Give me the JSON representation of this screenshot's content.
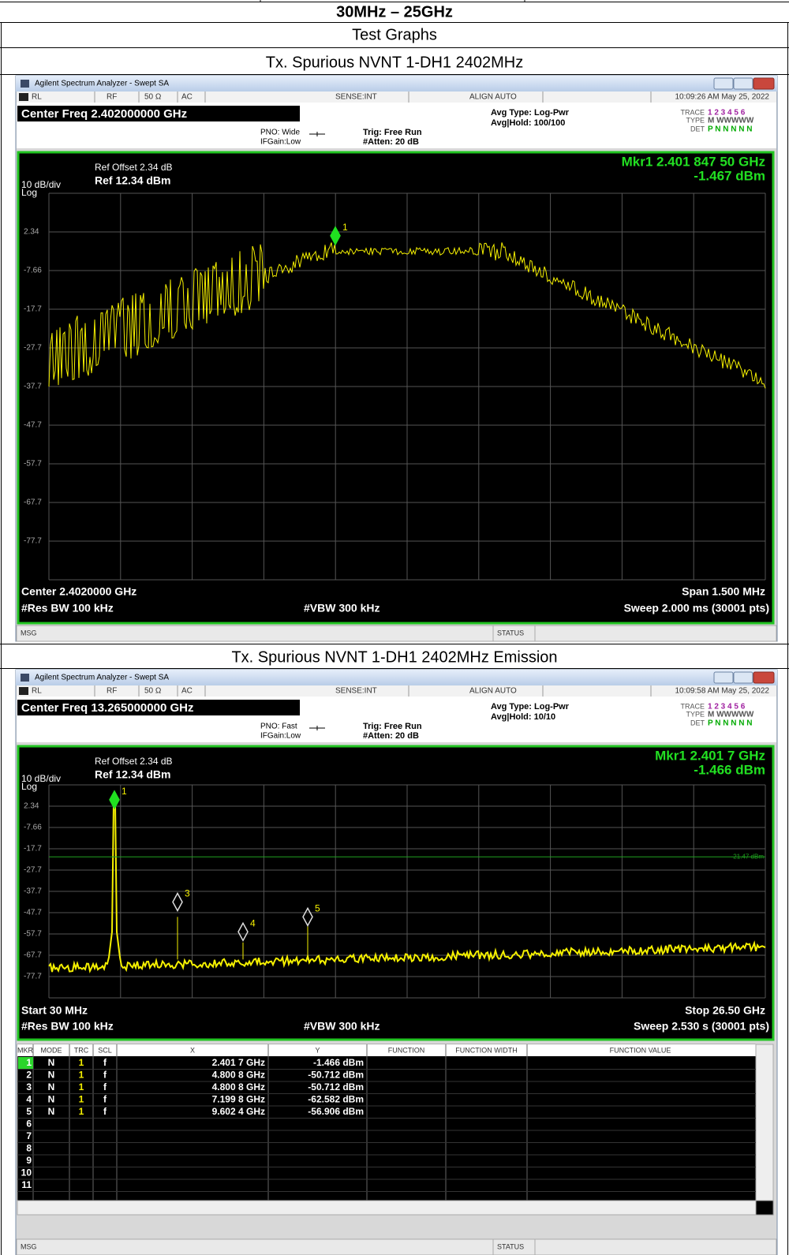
{
  "header": {
    "range": "30MHz – 25GHz",
    "section": "Test Graphs"
  },
  "graphs": [
    {
      "caption": "Tx. Spurious NVNT 1-DH1 2402MHz",
      "analyzer": {
        "window_title": "Agilent Spectrum Analyzer - Swept SA",
        "status": [
          "RL",
          "RF",
          "50 Ω",
          "AC",
          "SENSE:INT",
          "ALIGN AUTO",
          "10:09:26 AM May 25, 2022"
        ],
        "center_freq": "Center Freq 2.402000000 GHz",
        "settings": [
          "PNO: Wide",
          "IFGain:Low",
          "Trig: Free Run",
          "#Atten: 20 dB",
          "Avg Type: Log-Pwr",
          "Avg|Hold: 100/100"
        ],
        "trace_info": {
          "trace_label": "TRACE",
          "trace": "1 2 3 4 5 6",
          "type_label": "TYPE",
          "type": "M WWWWW",
          "det_label": "DET",
          "det": "P N N N N N"
        },
        "ref_offset": "Ref Offset 2.34 dB",
        "scale": "10 dB/div",
        "ref_level": "Ref 12.34 dBm",
        "scale_type": "Log",
        "marker_readout": [
          "Mkr1 2.401 847 50 GHz",
          "-1.467 dBm"
        ],
        "y_labels": [
          "2.34",
          "-7.66",
          "-17.7",
          "-27.7",
          "-37.7",
          "-47.7",
          "-57.7",
          "-67.7",
          "-77.7"
        ],
        "footer": [
          "Center 2.4020000 GHz",
          "Span 1.500 MHz",
          "#Res BW 100 kHz",
          "#VBW 300 kHz",
          "Sweep  2.000 ms (30001 pts)"
        ],
        "markers": [
          "1"
        ],
        "msg": "MSG",
        "status_bar": "STATUS"
      }
    },
    {
      "caption": "Tx. Spurious NVNT 1-DH1 2402MHz Emission",
      "analyzer": {
        "window_title": "Agilent Spectrum Analyzer - Swept SA",
        "status": [
          "RL",
          "RF",
          "50 Ω",
          "AC",
          "SENSE:INT",
          "ALIGN AUTO",
          "10:09:58 AM May 25, 2022"
        ],
        "center_freq": "Center Freq 13.265000000 GHz",
        "settings": [
          "PNO: Fast",
          "IFGain:Low",
          "Trig: Free Run",
          "#Atten: 20 dB",
          "Avg Type: Log-Pwr",
          "Avg|Hold: 10/10"
        ],
        "trace_info": {
          "trace_label": "TRACE",
          "trace": "1 2 3 4 5 6",
          "type_label": "TYPE",
          "type": "M WWWWW",
          "det_label": "DET",
          "det": "P N N N N N"
        },
        "ref_offset": "Ref Offset 2.34 dB",
        "scale": "10 dB/div",
        "ref_level": "Ref 12.34 dBm",
        "scale_type": "Log",
        "marker_readout": [
          "Mkr1 2.401 7 GHz",
          "-1.466 dBm"
        ],
        "y_labels": [
          "2.34",
          "-7.66",
          "-17.7",
          "-27.7",
          "-37.7",
          "-47.7",
          "-57.7",
          "-67.7",
          "-77.7"
        ],
        "limit_label": "-21.47 dBm",
        "footer": [
          "Start 30 MHz",
          "Stop 26.50 GHz",
          "#Res BW 100 kHz",
          "#VBW 300 kHz",
          "Sweep  2.530 s (30001 pts)"
        ],
        "markers": [
          "1",
          "3",
          "4",
          "5"
        ],
        "table": {
          "headers": [
            "MKR",
            "MODE",
            "TRC",
            "SCL",
            "X",
            "Y",
            "FUNCTION",
            "FUNCTION WIDTH",
            "FUNCTION VALUE"
          ],
          "rows": [
            [
              "1",
              "N",
              "1",
              "f",
              "2.401 7 GHz",
              "-1.466 dBm"
            ],
            [
              "2",
              "N",
              "1",
              "f",
              "4.800 8 GHz",
              "-50.712 dBm"
            ],
            [
              "3",
              "N",
              "1",
              "f",
              "4.800 8 GHz",
              "-50.712 dBm"
            ],
            [
              "4",
              "N",
              "1",
              "f",
              "7.199 8 GHz",
              "-62.582 dBm"
            ],
            [
              "5",
              "N",
              "1",
              "f",
              "9.602 4 GHz",
              "-56.906 dBm"
            ],
            [
              "6"
            ],
            [
              "7"
            ],
            [
              "8"
            ],
            [
              "9"
            ],
            [
              "10"
            ],
            [
              "11"
            ]
          ]
        },
        "msg": "MSG",
        "status_bar": "STATUS"
      }
    }
  ]
}
